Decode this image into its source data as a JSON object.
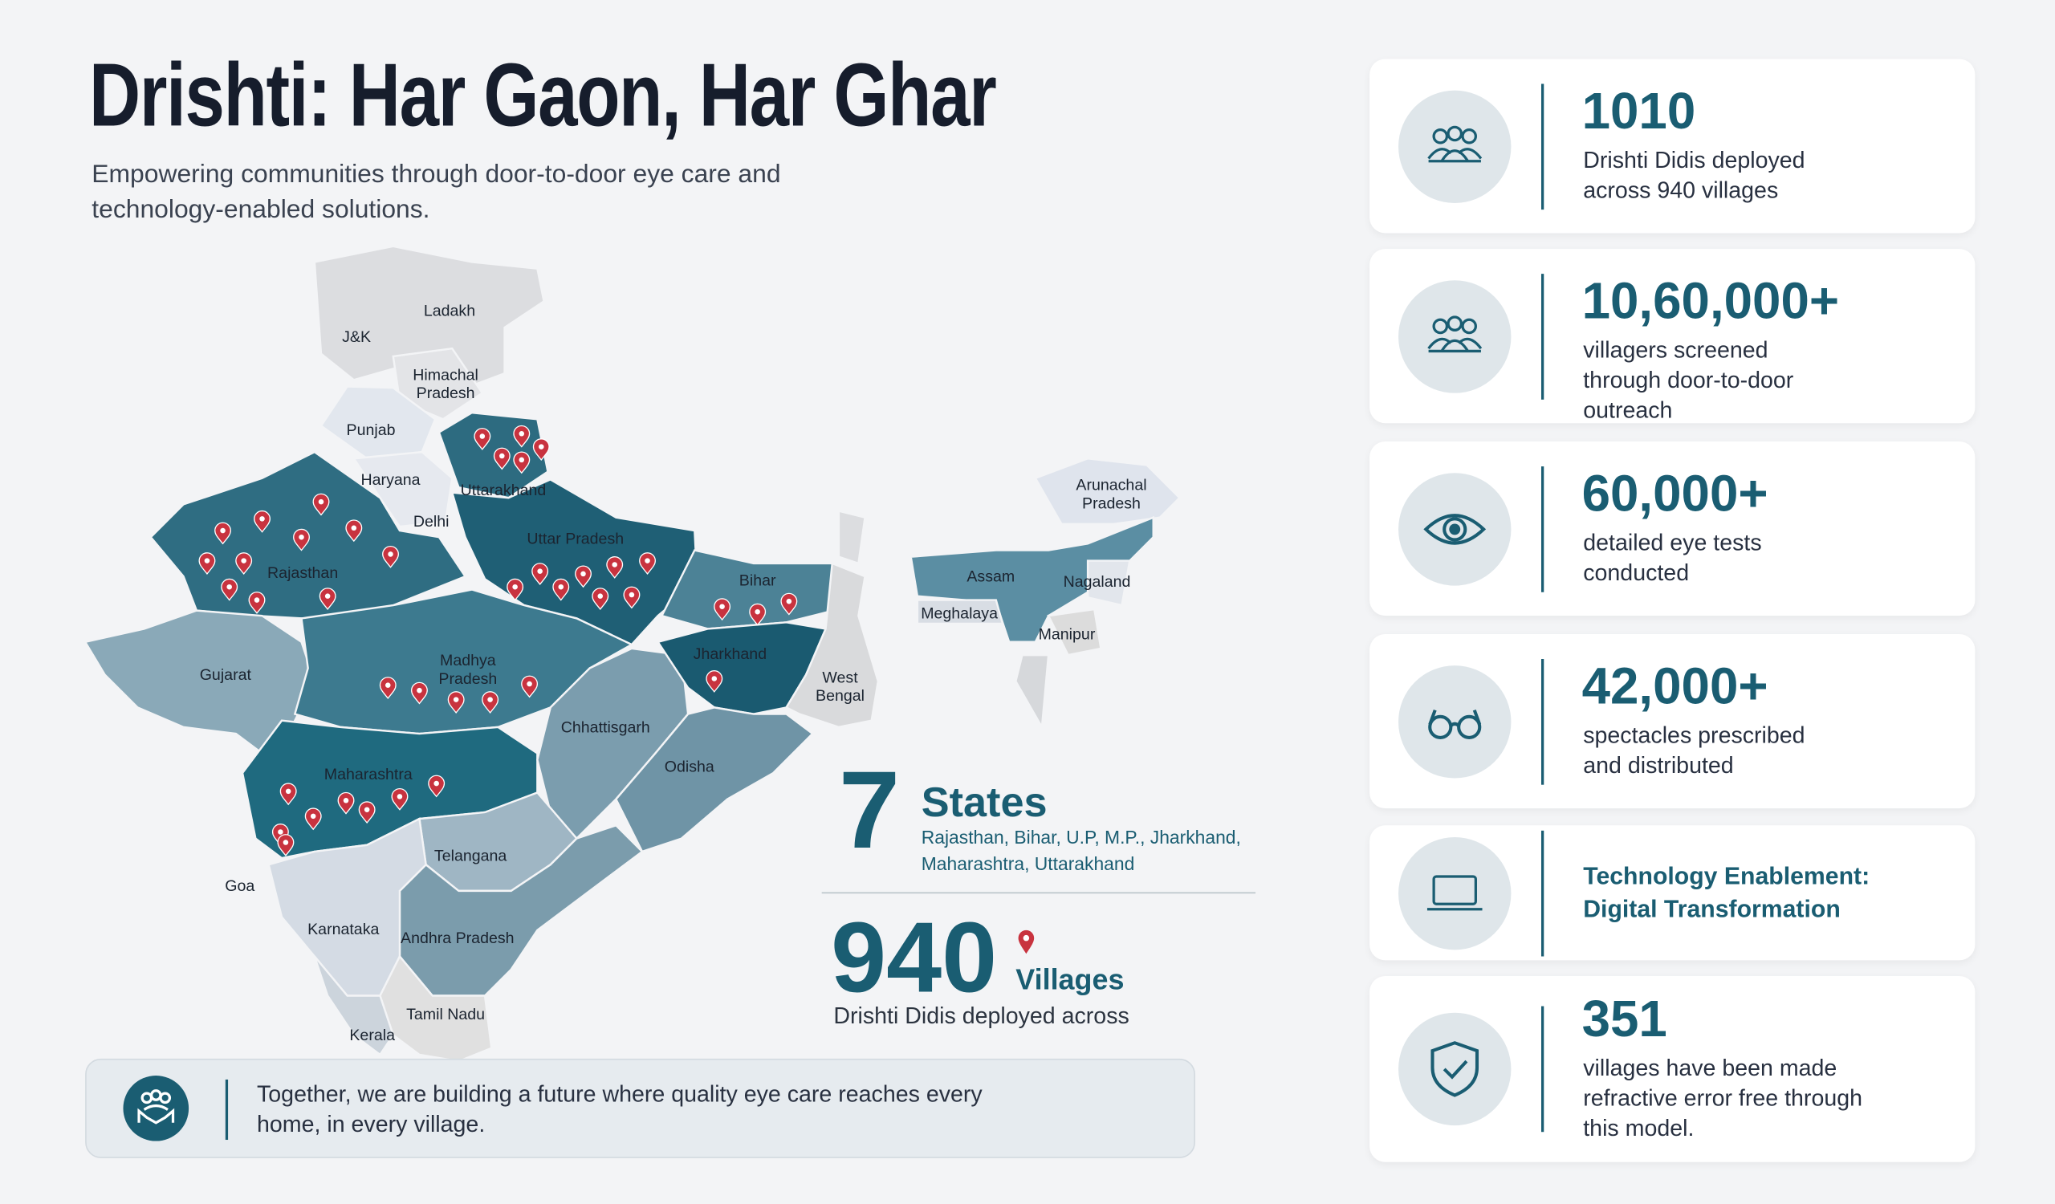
{
  "header": {
    "title": "Drishti: Har Gaon, Har Ghar",
    "subtitle": "Empowering communities through door-to-door eye care and technology-enabled solutions."
  },
  "map": {
    "labels": [
      "Ladakh",
      "J&K",
      "Himachal Pradesh",
      "Punjab",
      "Haryana",
      "Uttarakhand",
      "Delhi",
      "Uttar Pradesh",
      "Rajasthan",
      "Bihar",
      "Arunachal Pradesh",
      "Assam",
      "Nagaland",
      "Meghalaya",
      "Manipur",
      "Jharkhand",
      "Gujarat",
      "Madhya Pradesh",
      "West Bengal",
      "Chhattisgarh",
      "Odisha",
      "Maharashtra",
      "Telangana",
      "Goa",
      "Karnataka",
      "Andhra Pradesh",
      "Tamil Nadu",
      "Kerala"
    ]
  },
  "states_stat": {
    "number": "7",
    "label": "States",
    "list": "Rajasthan, Bihar, U.P, M.P., Jharkhand, Maharashtra, Uttarakhand"
  },
  "villages_stat": {
    "number": "940",
    "label": "Villages",
    "caption": "Drishti Didis deployed across"
  },
  "footer": {
    "text": "Together, we are building a future where quality eye care reaches every home, in every village."
  },
  "stats": [
    {
      "value": "1010",
      "text": "Drishti Didis deployed across 940 villages"
    },
    {
      "value": "10,60,000+",
      "text": "villagers screened through door-to-door outreach"
    },
    {
      "value": "60,000+",
      "text": "detailed eye tests conducted"
    },
    {
      "value": "42,000+",
      "text": "spectacles prescribed and distributed"
    },
    {
      "title": "Technology Enablement: Digital Transformation"
    },
    {
      "value": "351",
      "text": "villages have been made refractive error free through this model."
    }
  ]
}
